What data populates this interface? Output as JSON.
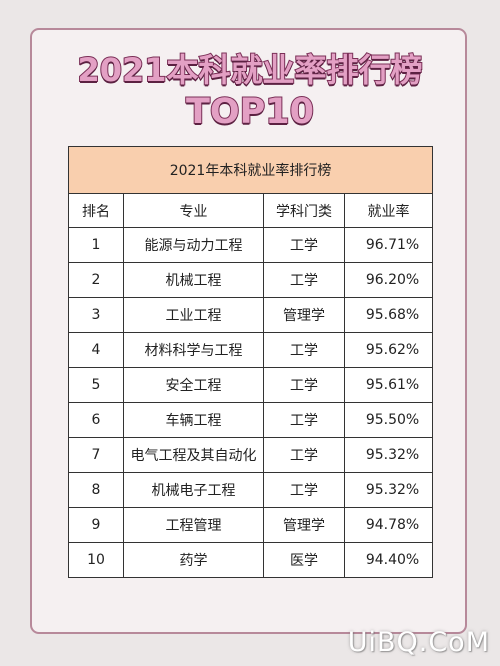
{
  "page": {
    "title_line1": "2021本科就业率排行榜",
    "title_line2": "TOP10",
    "watermark": "UiBQ.CoM"
  },
  "table": {
    "caption": "2021年本科就业率排行榜",
    "headers": [
      "排名",
      "专业",
      "学科门类",
      "就业率"
    ],
    "rows": [
      {
        "rank": "1",
        "major": "能源与动力工程",
        "category": "工学",
        "rate": "96.71%"
      },
      {
        "rank": "2",
        "major": "机械工程",
        "category": "工学",
        "rate": "96.20%"
      },
      {
        "rank": "3",
        "major": "工业工程",
        "category": "管理学",
        "rate": "95.68%"
      },
      {
        "rank": "4",
        "major": "材料科学与工程",
        "category": "工学",
        "rate": "95.62%"
      },
      {
        "rank": "5",
        "major": "安全工程",
        "category": "工学",
        "rate": "95.61%"
      },
      {
        "rank": "6",
        "major": "车辆工程",
        "category": "工学",
        "rate": "95.50%"
      },
      {
        "rank": "7",
        "major": "电气工程及其自动化",
        "category": "工学",
        "rate": "95.32%"
      },
      {
        "rank": "8",
        "major": "机械电子工程",
        "category": "工学",
        "rate": "95.32%"
      },
      {
        "rank": "9",
        "major": "工程管理",
        "category": "管理学",
        "rate": "94.78%"
      },
      {
        "rank": "10",
        "major": "药学",
        "category": "医学",
        "rate": "94.40%"
      }
    ]
  },
  "colors": {
    "background": "#ebe7e7",
    "card_border": "#b7899a",
    "title_fill": "#e3a0c4",
    "title_outline": "#7a2f57",
    "caption_bg": "#f9cfae"
  }
}
